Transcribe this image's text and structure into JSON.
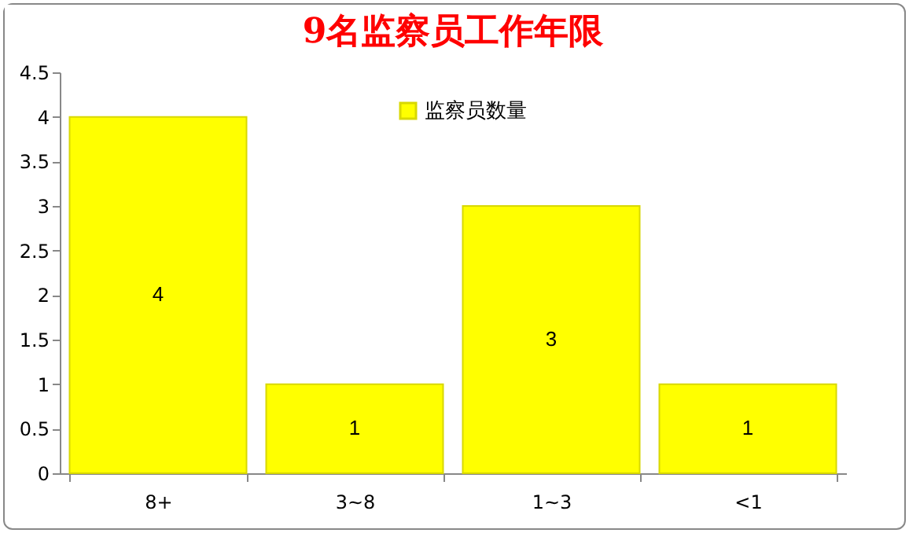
{
  "chart_data": {
    "type": "bar",
    "title": "9名监察员工作年限",
    "categories": [
      "8+",
      "3~8",
      "1~3",
      "<1"
    ],
    "series": [
      {
        "name": "监察员数量",
        "color": "#ffff00",
        "values": [
          4,
          1,
          3,
          1
        ]
      }
    ],
    "ylim": [
      0,
      4.5
    ],
    "yticks": [
      0,
      0.5,
      1,
      1.5,
      2,
      2.5,
      3,
      3.5,
      4,
      4.5
    ],
    "grid": false,
    "legend": "top",
    "data_labels": true
  }
}
